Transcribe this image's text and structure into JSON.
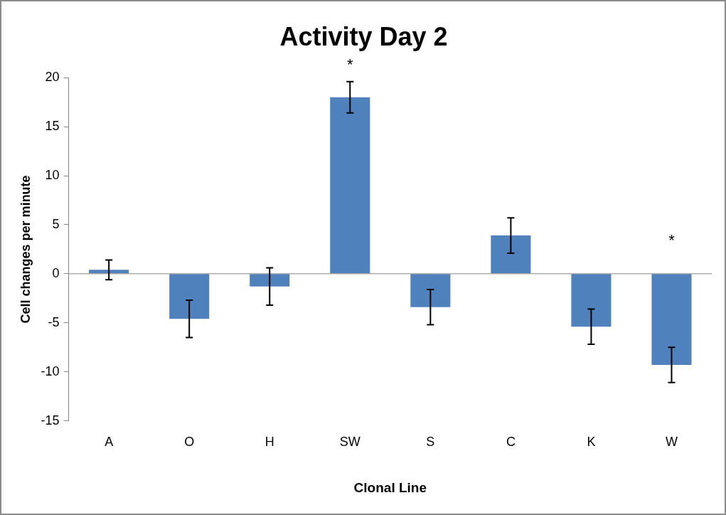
{
  "chart_data": {
    "type": "bar",
    "title": "Activity Day 2",
    "xlabel": "Clonal Line",
    "ylabel": "Cell changes per minute",
    "categories": [
      "A",
      "O",
      "H",
      "SW",
      "S",
      "C",
      "K",
      "W"
    ],
    "values": [
      0.4,
      -4.6,
      -1.3,
      18.0,
      -3.4,
      3.9,
      -5.4,
      -9.3
    ],
    "errors": [
      1.0,
      1.9,
      1.9,
      1.6,
      1.8,
      1.8,
      1.8,
      1.8
    ],
    "color": "#4f81bd",
    "ylim": [
      -15,
      20
    ],
    "yticks": [
      -15,
      -10,
      -5,
      0,
      5,
      10,
      15,
      20
    ],
    "grid": false,
    "legend": false,
    "ref_lines": [
      {
        "axis": "y",
        "value": 0,
        "color": "#868686"
      }
    ],
    "annotations": [
      "*",
      "*"
    ]
  }
}
